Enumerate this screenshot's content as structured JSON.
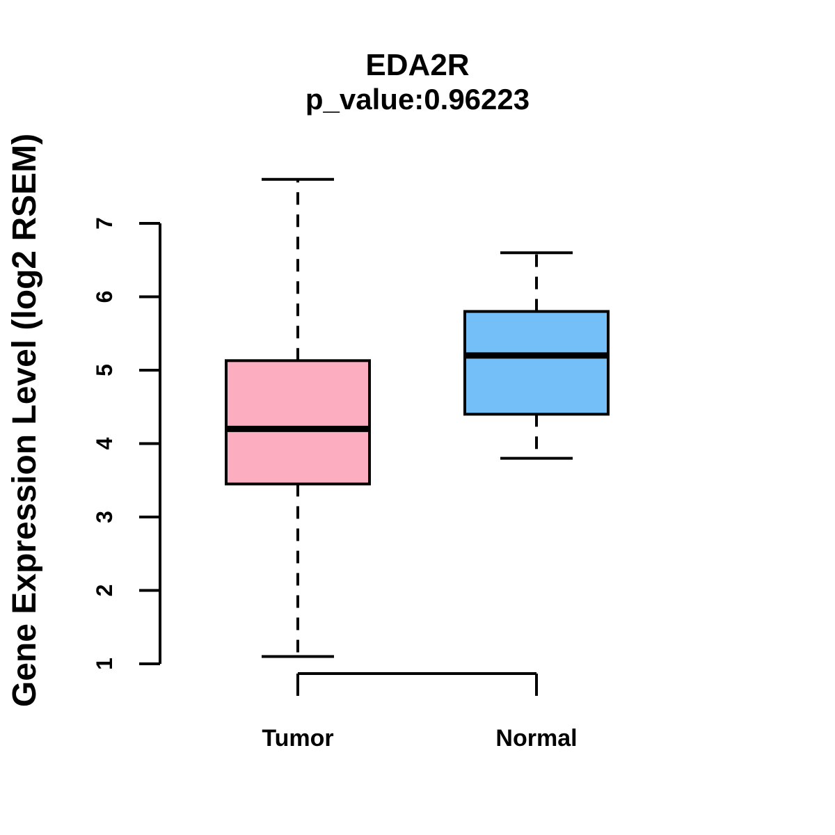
{
  "chart_data": {
    "type": "boxplot",
    "title": "EDA2R",
    "subtitle": "p_value:0.96223",
    "p_value": "0.96223",
    "ylabel": "Gene Expression Level (log2 RSEM)",
    "xlabel": "",
    "categories": [
      "Tumor",
      "Normal"
    ],
    "y_ticks": [
      1,
      2,
      3,
      4,
      5,
      6,
      7
    ],
    "ylim": [
      0.8,
      7.8
    ],
    "grid": false,
    "legend": "none",
    "series": [
      {
        "name": "Tumor",
        "fill_color": "#FCAEC0",
        "whisker_low": 1.1,
        "q1": 3.45,
        "median": 4.2,
        "q3": 5.13,
        "whisker_high": 7.6
      },
      {
        "name": "Normal",
        "fill_color": "#74BFF7",
        "whisker_low": 3.8,
        "q1": 4.4,
        "median": 5.2,
        "q3": 5.8,
        "whisker_high": 6.6
      }
    ],
    "stroke_color": "#000000",
    "background_color": "#FFFFFF",
    "whisker_style": "dashed"
  }
}
